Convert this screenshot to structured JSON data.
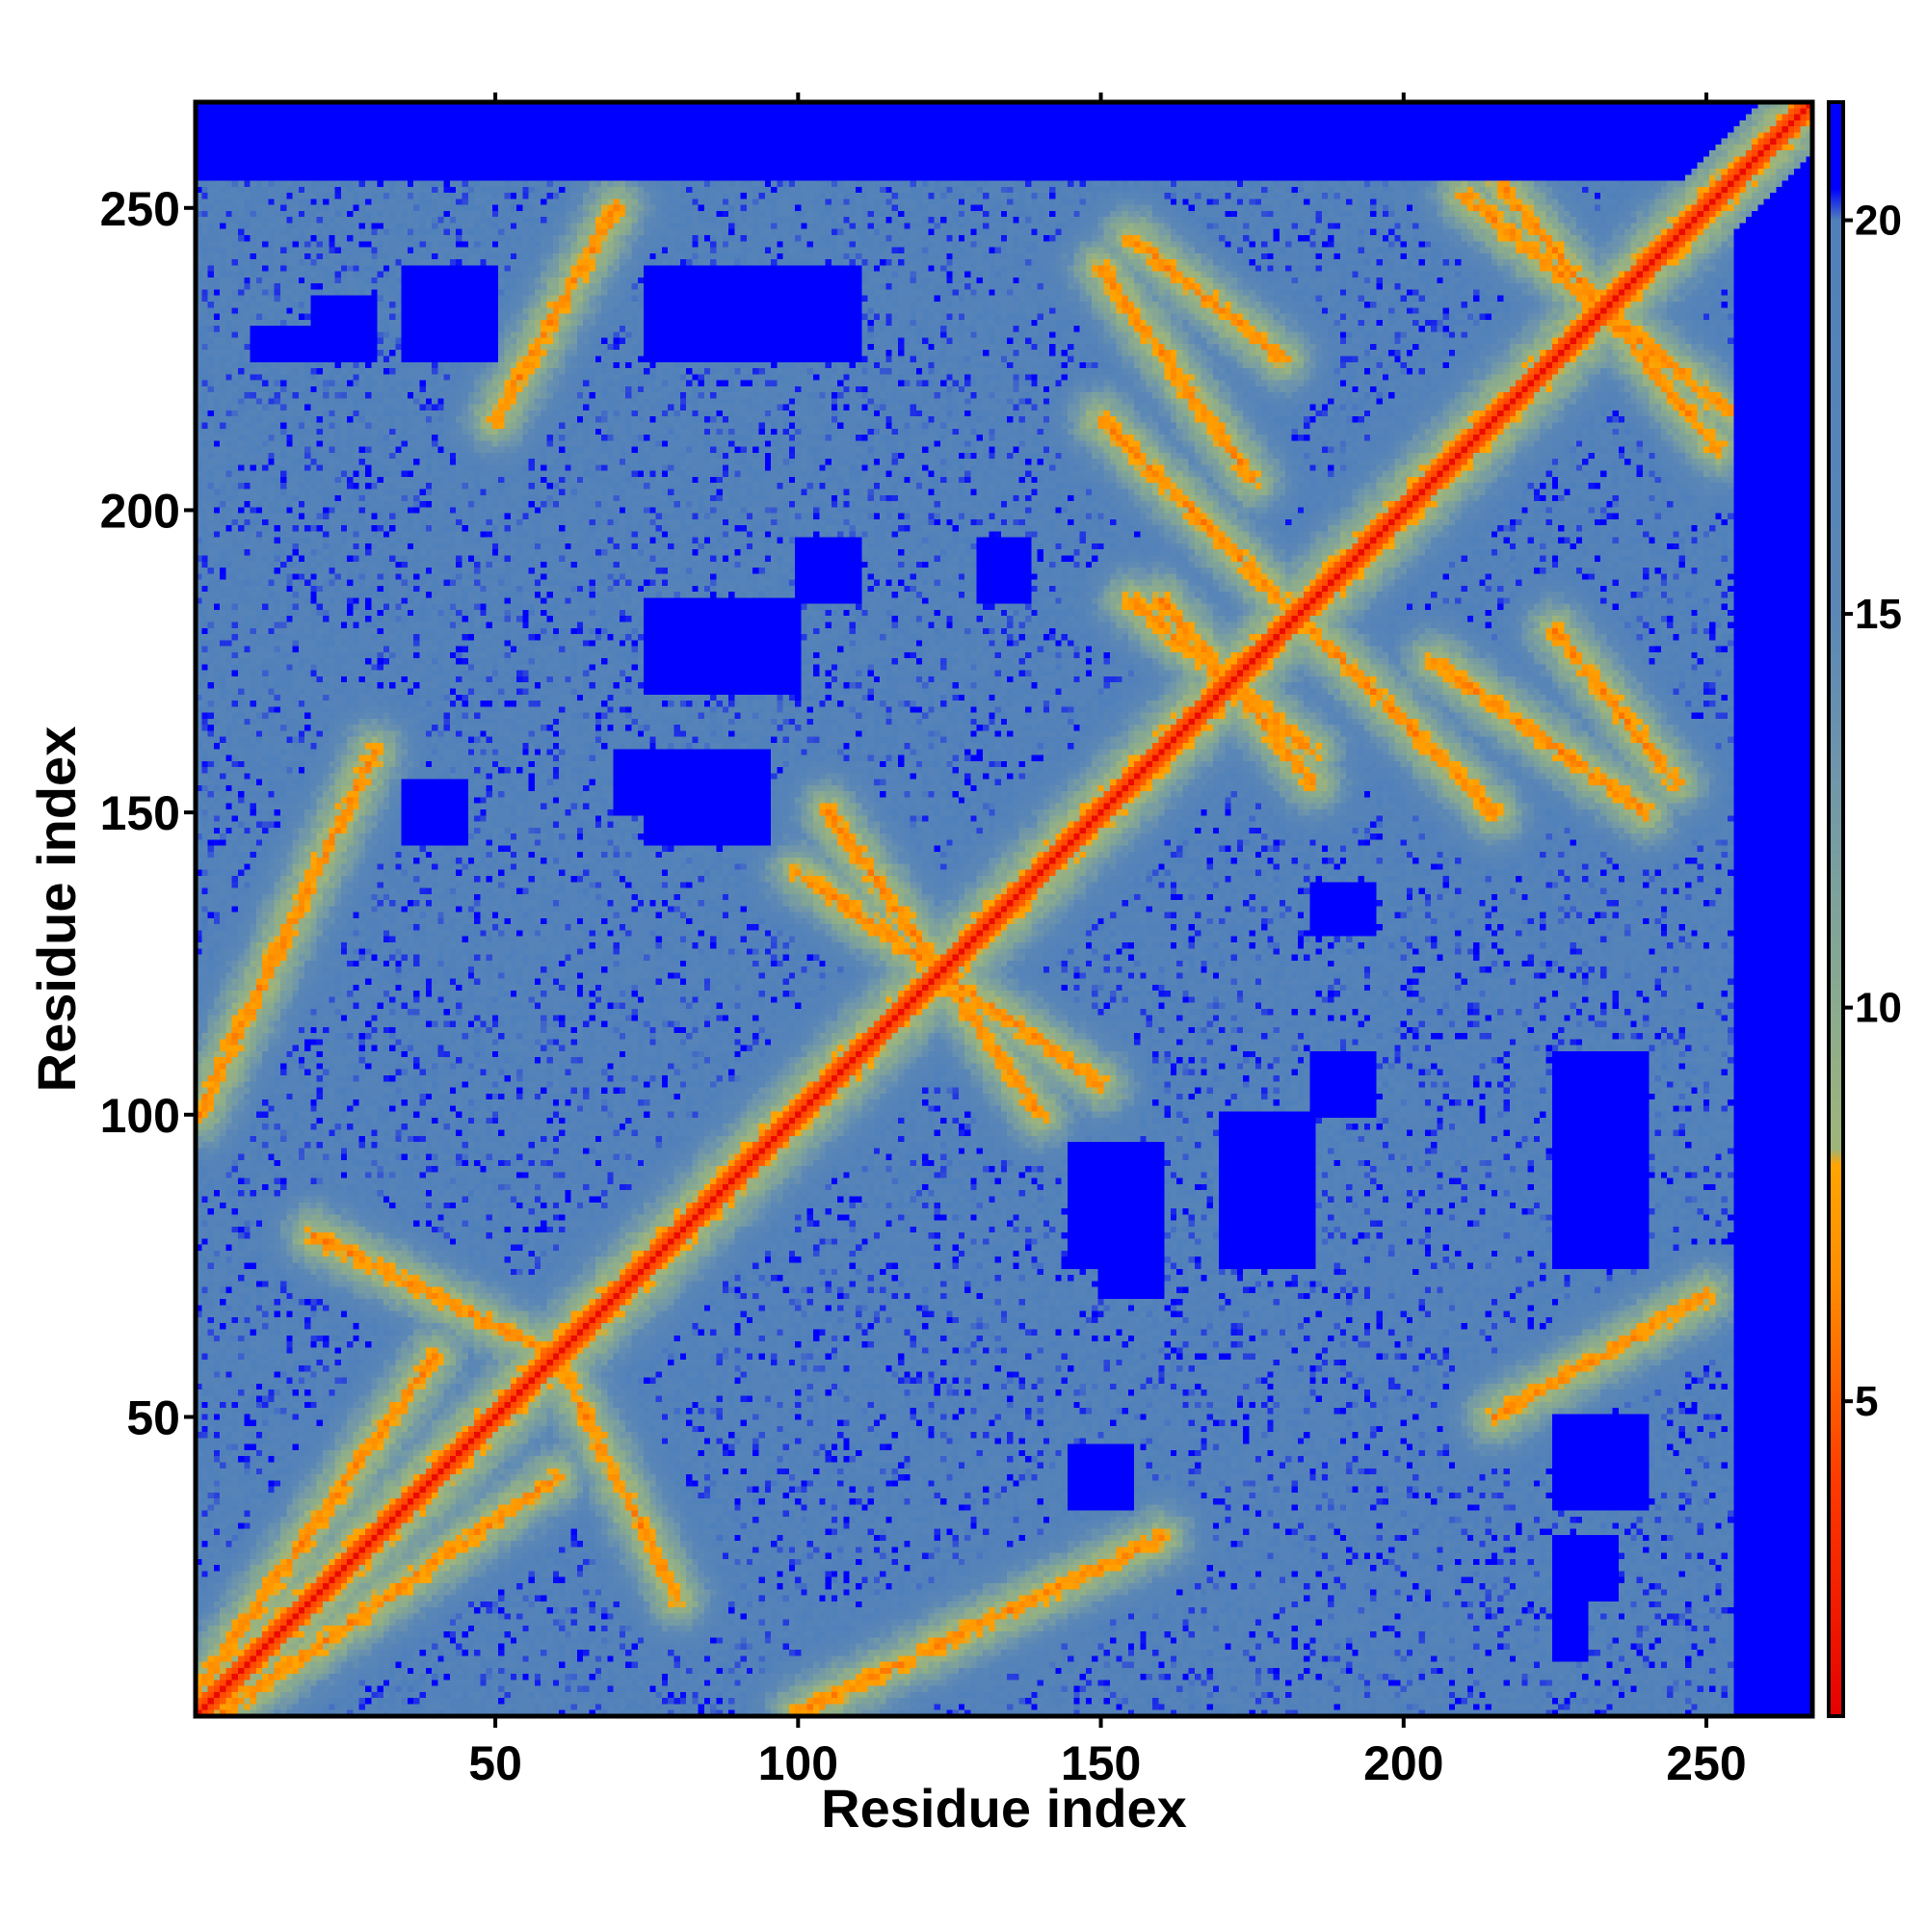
{
  "chart_data": {
    "type": "heatmap",
    "title": "",
    "xlabel": "Residue index",
    "ylabel": "Residue index",
    "n_residues": 267,
    "xlim": [
      1,
      267
    ],
    "ylim": [
      1,
      267
    ],
    "xticks": [
      50,
      100,
      150,
      200,
      250
    ],
    "yticks": [
      50,
      100,
      150,
      200,
      250
    ],
    "colorbar": {
      "range": [
        1,
        21.5
      ],
      "ticks": [
        5,
        10,
        15,
        20
      ],
      "stops": [
        {
          "value": 1,
          "color": "#e60000"
        },
        {
          "value": 4,
          "color": "#ff3b00"
        },
        {
          "value": 6.5,
          "color": "#ff8c00"
        },
        {
          "value": 8,
          "color": "#ffa500"
        },
        {
          "value": 8.2,
          "color": "#9fb57a"
        },
        {
          "value": 10,
          "color": "#8aab8e"
        },
        {
          "value": 13,
          "color": "#6f96ab"
        },
        {
          "value": 15,
          "color": "#5b87b6"
        },
        {
          "value": 20,
          "color": "#5080bb"
        },
        {
          "value": 20.4,
          "color": "#0000ff"
        },
        {
          "value": 21.5,
          "color": "#0000ff"
        }
      ]
    },
    "diagonal_distance": 3.8,
    "contact_bands": [
      {
        "type": "parallel",
        "x": [
          1,
          40
        ],
        "y": [
          5,
          60
        ],
        "note": "near-diagonal band"
      },
      {
        "type": "antiparallel",
        "x": [
          210,
          255
        ],
        "y": [
          215,
          252
        ]
      },
      {
        "type": "antiparallel",
        "x": [
          150,
          175
        ],
        "y": [
          205,
          240
        ]
      },
      {
        "type": "antiparallel",
        "x": [
          105,
          140
        ],
        "y": [
          100,
          150
        ]
      },
      {
        "type": "antiparallel",
        "x": [
          60,
          80
        ],
        "y": [
          20,
          60
        ]
      },
      {
        "type": "antiparallel",
        "x": [
          185,
          215
        ],
        "y": [
          150,
          180
        ]
      },
      {
        "type": "antiparallel",
        "x": [
          225,
          245
        ],
        "y": [
          155,
          180
        ]
      },
      {
        "type": "antiparallel",
        "x": [
          160,
          185
        ],
        "y": [
          155,
          185
        ]
      },
      {
        "type": "parallel",
        "x": [
          1,
          30
        ],
        "y": [
          100,
          160
        ]
      },
      {
        "type": "parallel",
        "x": [
          50,
          70
        ],
        "y": [
          215,
          250
        ]
      }
    ],
    "far_regions": [
      {
        "x": [
          5,
          270
        ],
        "y": [
          255,
          267
        ],
        "note": "top edge far"
      },
      {
        "x": [
          255,
          267
        ],
        "y": [
          1,
          267
        ],
        "note": "right edge far"
      },
      {
        "x": [
          20,
          30
        ],
        "y": [
          225,
          235
        ]
      },
      {
        "x": [
          35,
          50
        ],
        "y": [
          225,
          240
        ]
      },
      {
        "x": [
          75,
          90
        ],
        "y": [
          225,
          240
        ]
      },
      {
        "x": [
          100,
          110
        ],
        "y": [
          225,
          240
        ]
      },
      {
        "x": [
          75,
          95
        ],
        "y": [
          145,
          155
        ]
      },
      {
        "x": [
          35,
          45
        ],
        "y": [
          145,
          155
        ]
      },
      {
        "x": [
          100,
          110
        ],
        "y": [
          185,
          195
        ]
      },
      {
        "x": [
          130,
          138
        ],
        "y": [
          185,
          195
        ]
      },
      {
        "x": [
          150,
          160
        ],
        "y": [
          70,
          95
        ]
      },
      {
        "x": [
          170,
          185
        ],
        "y": [
          75,
          100
        ]
      },
      {
        "x": [
          225,
          240
        ],
        "y": [
          80,
          100
        ]
      },
      {
        "x": [
          230,
          240
        ],
        "y": [
          35,
          50
        ]
      },
      {
        "x": [
          225,
          230
        ],
        "y": [
          10,
          20
        ]
      }
    ]
  }
}
